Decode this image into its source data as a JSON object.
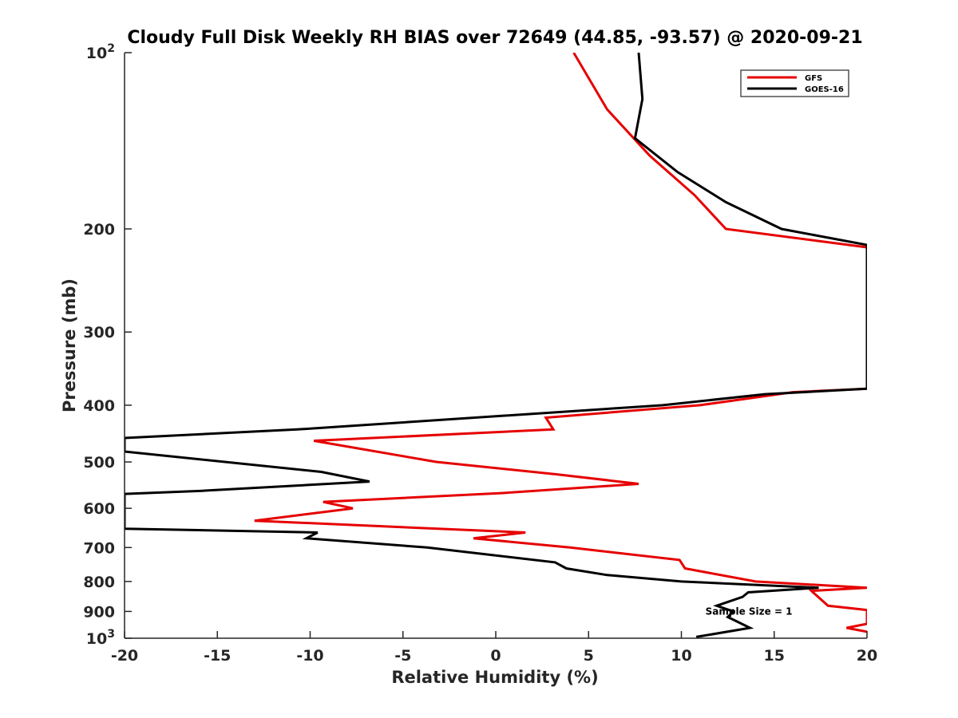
{
  "chart_data": {
    "type": "line",
    "title": "Cloudy Full Disk Weekly RH BIAS over 72649 (44.85, -93.57) @ 2020-09-21",
    "xlabel": "Relative Humidity (%)",
    "ylabel": "Pressure (mb)",
    "xlim": [
      -20,
      20
    ],
    "ylim": [
      100,
      1000
    ],
    "yscale": "log",
    "y_reversed": true,
    "grid": false,
    "legend_position": "top-right",
    "x_ticks": [
      "-20",
      "-15",
      "-10",
      "-5",
      "0",
      "5",
      "10",
      "15",
      "20"
    ],
    "y_ticks": [
      {
        "value": 100,
        "base": "10",
        "exp": "2"
      },
      {
        "value": 200,
        "label": "200"
      },
      {
        "value": 300,
        "label": "300"
      },
      {
        "value": 400,
        "label": "400"
      },
      {
        "value": 500,
        "label": "500"
      },
      {
        "value": 600,
        "label": "600"
      },
      {
        "value": 700,
        "label": "700"
      },
      {
        "value": 800,
        "label": "800"
      },
      {
        "value": 900,
        "label": "900"
      },
      {
        "value": 1000,
        "base": "10",
        "exp": "3"
      }
    ],
    "annotation": {
      "text": "Sample Size = 1",
      "x": 12.5,
      "y": 900
    },
    "series": [
      {
        "name": "GFS",
        "color": "#e60000",
        "points": [
          [
            4.2,
            100
          ],
          [
            6.0,
            125
          ],
          [
            8.3,
            150
          ],
          [
            10.7,
            175
          ],
          [
            12.4,
            200
          ],
          [
            20,
            215
          ],
          [
            20,
            375
          ],
          [
            16.0,
            380
          ],
          [
            11.0,
            400
          ],
          [
            2.7,
            420
          ],
          [
            3.1,
            440
          ],
          [
            -9.8,
            460
          ],
          [
            -3.2,
            500
          ],
          [
            3.3,
            525
          ],
          [
            7.7,
            545
          ],
          [
            0.4,
            565
          ],
          [
            -9.3,
            585
          ],
          [
            -7.7,
            600
          ],
          [
            -13.0,
            630
          ],
          [
            1.6,
            660
          ],
          [
            -1.2,
            675
          ],
          [
            4.0,
            700
          ],
          [
            9.9,
            735
          ],
          [
            10.2,
            760
          ],
          [
            14.0,
            800
          ],
          [
            20,
            820
          ],
          [
            17.0,
            830
          ],
          [
            17.9,
            880
          ],
          [
            20,
            895
          ],
          [
            20,
            945
          ],
          [
            18.9,
            960
          ],
          [
            20,
            975
          ]
        ]
      },
      {
        "name": "GOES-16",
        "color": "#000000",
        "points": [
          [
            7.7,
            100
          ],
          [
            7.9,
            120
          ],
          [
            7.5,
            140
          ],
          [
            9.8,
            160
          ],
          [
            12.4,
            180
          ],
          [
            15.4,
            200
          ],
          [
            20,
            213
          ],
          [
            20,
            375
          ],
          [
            14.5,
            383
          ],
          [
            9.0,
            400
          ],
          [
            -10.7,
            440
          ],
          [
            -20,
            455
          ],
          [
            -20,
            480
          ],
          [
            -9.4,
            520
          ],
          [
            -6.8,
            540
          ],
          [
            -15.8,
            560
          ],
          [
            -20,
            567
          ],
          [
            -20,
            650
          ],
          [
            -9.6,
            660
          ],
          [
            -10.2,
            675
          ],
          [
            -3.7,
            700
          ],
          [
            3.2,
            742
          ],
          [
            3.8,
            760
          ],
          [
            6.0,
            780
          ],
          [
            10.0,
            800
          ],
          [
            17.4,
            820
          ],
          [
            13.6,
            835
          ],
          [
            13.3,
            850
          ],
          [
            11.9,
            880
          ],
          [
            12.8,
            900
          ],
          [
            12.5,
            920
          ],
          [
            13.7,
            960
          ],
          [
            10.8,
            995
          ]
        ]
      }
    ]
  }
}
